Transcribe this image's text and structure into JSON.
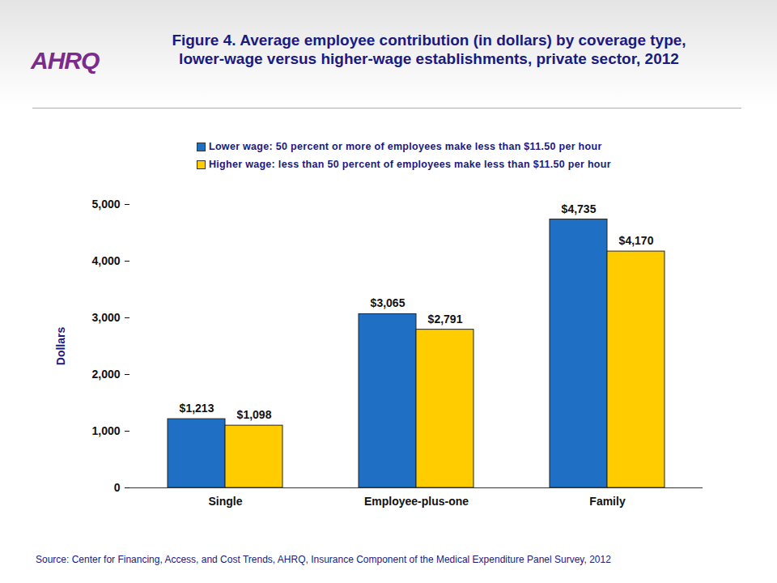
{
  "chart_data": {
    "type": "bar",
    "logo": "AHRQ",
    "title": "Figure 4. Average employee contribution (in dollars) by coverage type, lower-wage versus higher-wage establishments, private sector, 2012",
    "y_label": "Dollars",
    "source": "Source: Center for Financing, Access, and Cost Trends, AHRQ, Insurance Component of the Medical Expenditure Panel Survey, 2012",
    "categories": [
      "Single",
      "Employee-plus-one",
      "Family"
    ],
    "series": [
      {
        "name": "Lower wage: 50 percent or more of employees make less than $11.50 per hour",
        "color": "#1f6fc4",
        "values": [
          1213,
          3065,
          4735
        ],
        "value_labels": [
          "$1,213",
          "$3,065",
          "$4,735"
        ]
      },
      {
        "name": "Higher wage: less than 50 percent of employees make less than $11.50 per hour",
        "color": "#ffcc00",
        "values": [
          1098,
          2791,
          4170
        ],
        "value_labels": [
          "$1,098",
          "$2,791",
          "$4,170"
        ]
      }
    ],
    "ylim": [
      0,
      5000
    ],
    "yticks": [
      0,
      {
        "value": 1000,
        "label": "1,000"
      },
      {
        "value": 2000,
        "label": "2,000"
      },
      {
        "value": 3000,
        "label": "3,000"
      },
      {
        "value": 4000,
        "label": "4,000"
      },
      {
        "value": 5000,
        "label": "5,000"
      }
    ],
    "data_labels": true,
    "legend": "top",
    "grid": false
  }
}
